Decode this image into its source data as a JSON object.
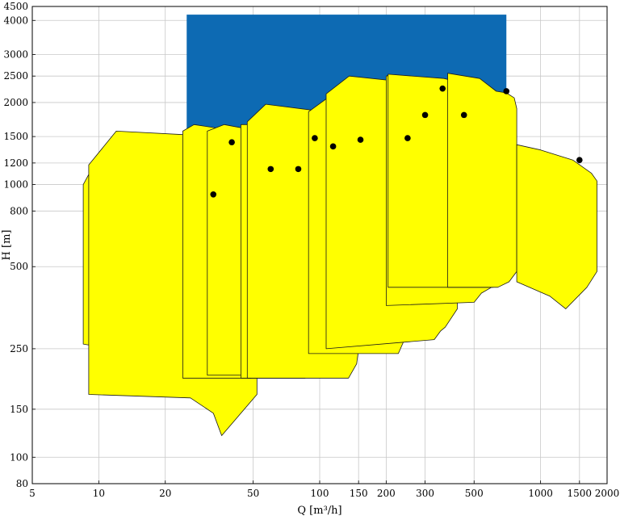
{
  "chart_data": {
    "type": "area",
    "title": "",
    "xlabel": "Q [m³/h]",
    "ylabel": "H [m]",
    "x_scale": "log",
    "y_scale": "log",
    "xlim": [
      5,
      2000
    ],
    "ylim": [
      80,
      4500
    ],
    "grid": true,
    "x_ticks": [
      5,
      10,
      20,
      50,
      100,
      150,
      200,
      300,
      500,
      1000,
      1500,
      2000
    ],
    "x_tick_labels": [
      "5",
      "10",
      "20",
      "50",
      "100",
      "150",
      "200",
      "300",
      "500",
      "1000",
      "1500",
      "2000"
    ],
    "y_ticks": [
      80,
      100,
      150,
      250,
      500,
      800,
      1000,
      1200,
      1500,
      2000,
      2500,
      3000,
      4000,
      4500
    ],
    "y_tick_labels": [
      "80",
      "100",
      "150",
      "250",
      "500",
      "800",
      "1000",
      "1200",
      "1500",
      "2000",
      "2500",
      "3000",
      "4000",
      "4500"
    ],
    "colors": {
      "envelope": "#0d6ab3",
      "pump_range": "#ffff00",
      "outline": "#1a1a1a",
      "bep_marker": "#000000"
    },
    "envelope": {
      "q_min": 25,
      "q_max": 700,
      "h_min": 1500,
      "h_max": 4200
    },
    "pump_ranges": [
      {
        "polygon": [
          [
            8.5,
            1000
          ],
          [
            9.5,
            1180
          ],
          [
            30,
            980
          ],
          [
            38,
            800
          ],
          [
            38,
            200
          ],
          [
            33,
            160
          ],
          [
            29,
            195
          ],
          [
            20,
            225
          ],
          [
            12,
            248
          ],
          [
            8.5,
            260
          ]
        ],
        "bep": {
          "q": 33,
          "h": 920
        }
      },
      {
        "polygon": [
          [
            9,
            1180
          ],
          [
            12,
            1570
          ],
          [
            26,
            1520
          ],
          [
            33,
            1460
          ],
          [
            47,
            1250
          ],
          [
            52,
            1110
          ],
          [
            52,
            170
          ],
          [
            36,
            120
          ],
          [
            33,
            145
          ],
          [
            26,
            165
          ],
          [
            9,
            170
          ]
        ],
        "bep": {
          "q": 40,
          "h": 1430
        }
      },
      {
        "polygon": [
          [
            24,
            1570
          ],
          [
            27,
            1660
          ],
          [
            58,
            1510
          ],
          [
            68,
            1150
          ],
          [
            70,
            1000
          ],
          [
            70,
            265
          ],
          [
            64,
            240
          ],
          [
            58,
            212
          ],
          [
            49,
            195
          ],
          [
            24,
            195
          ]
        ],
        "bep": {
          "q": 60,
          "h": 1140
        }
      },
      {
        "polygon": [
          [
            31,
            1570
          ],
          [
            37,
            1660
          ],
          [
            75,
            1490
          ],
          [
            86,
            1150
          ],
          [
            90,
            1000
          ],
          [
            90,
            265
          ],
          [
            80,
            235
          ],
          [
            73,
            212
          ],
          [
            60,
            200
          ],
          [
            31,
            200
          ]
        ],
        "bep": {
          "q": 80,
          "h": 1140
        }
      },
      {
        "polygon": [
          [
            44,
            1660
          ],
          [
            48,
            1660
          ],
          [
            80,
            1580
          ],
          [
            95,
            1490
          ],
          [
            110,
            1190
          ],
          [
            110,
            243
          ],
          [
            97,
            220
          ],
          [
            86,
            195
          ],
          [
            44,
            195
          ]
        ],
        "bep": {
          "q": 95,
          "h": 1480
        }
      },
      {
        "polygon": [
          [
            50,
            1700
          ],
          [
            55,
            1720
          ],
          [
            95,
            1610
          ],
          [
            115,
            1420
          ],
          [
            130,
            1380
          ],
          [
            135,
            1000
          ],
          [
            135,
            250
          ],
          [
            114,
            200
          ],
          [
            50,
            200
          ]
        ],
        "bep": {
          "q": 115,
          "h": 1380
        }
      },
      {
        "polygon": [
          [
            47,
            1700
          ],
          [
            57,
            1970
          ],
          [
            100,
            1860
          ],
          [
            130,
            1780
          ],
          [
            155,
            1660
          ],
          [
            165,
            1500
          ],
          [
            170,
            1370
          ],
          [
            170,
            280
          ],
          [
            149,
            240
          ],
          [
            147,
            220
          ],
          [
            135,
            195
          ],
          [
            47,
            195
          ]
        ],
        "bep": {
          "q": 153,
          "h": 1460
        }
      },
      {
        "polygon": [
          [
            89,
            1850
          ],
          [
            115,
            2150
          ],
          [
            220,
            1980
          ],
          [
            260,
            1720
          ],
          [
            280,
            1560
          ],
          [
            280,
            305
          ],
          [
            242,
            270
          ],
          [
            227,
            240
          ],
          [
            175,
            240
          ],
          [
            89,
            240
          ]
        ],
        "bep": {
          "q": 250,
          "h": 1480
        }
      },
      {
        "polygon": [
          [
            107,
            2150
          ],
          [
            136,
            2500
          ],
          [
            240,
            2380
          ],
          [
            320,
            2200
          ],
          [
            395,
            1990
          ],
          [
            420,
            1790
          ],
          [
            420,
            350
          ],
          [
            370,
            300
          ],
          [
            352,
            290
          ],
          [
            330,
            270
          ],
          [
            107,
            250
          ]
        ],
        "bep": {
          "q": 300,
          "h": 1800
        }
      },
      {
        "polygon": [
          [
            200,
            2500
          ],
          [
            210,
            2520
          ],
          [
            350,
            2380
          ],
          [
            560,
            2230
          ],
          [
            660,
            1900
          ],
          [
            700,
            1700
          ],
          [
            700,
            480
          ],
          [
            650,
            440
          ],
          [
            600,
            420
          ],
          [
            540,
            400
          ],
          [
            500,
            370
          ],
          [
            200,
            360
          ]
        ],
        "bep": {
          "q": 360,
          "h": 2250
        }
      },
      {
        "polygon": [
          [
            204,
            2540
          ],
          [
            365,
            2450
          ],
          [
            520,
            2290
          ],
          [
            610,
            2200
          ],
          [
            740,
            2050
          ],
          [
            760,
            1800
          ],
          [
            760,
            480
          ],
          [
            700,
            440
          ],
          [
            610,
            420
          ],
          [
            204,
            420
          ]
        ],
        "bep": {
          "q": 450,
          "h": 1800
        }
      },
      {
        "polygon": [
          [
            380,
            2560
          ],
          [
            530,
            2450
          ],
          [
            630,
            2200
          ],
          [
            700,
            2170
          ],
          [
            760,
            2080
          ],
          [
            780,
            1900
          ],
          [
            780,
            480
          ],
          [
            720,
            440
          ],
          [
            640,
            420
          ],
          [
            380,
            420
          ]
        ],
        "bep": {
          "q": 700,
          "h": 2200
        }
      },
      {
        "polygon": [
          [
            780,
            1400
          ],
          [
            1000,
            1340
          ],
          [
            1400,
            1230
          ],
          [
            1700,
            1100
          ],
          [
            1800,
            1030
          ],
          [
            1800,
            480
          ],
          [
            1620,
            420
          ],
          [
            1300,
            350
          ],
          [
            1100,
            390
          ],
          [
            780,
            440
          ]
        ],
        "bep": {
          "q": 1500,
          "h": 1230
        }
      }
    ]
  }
}
